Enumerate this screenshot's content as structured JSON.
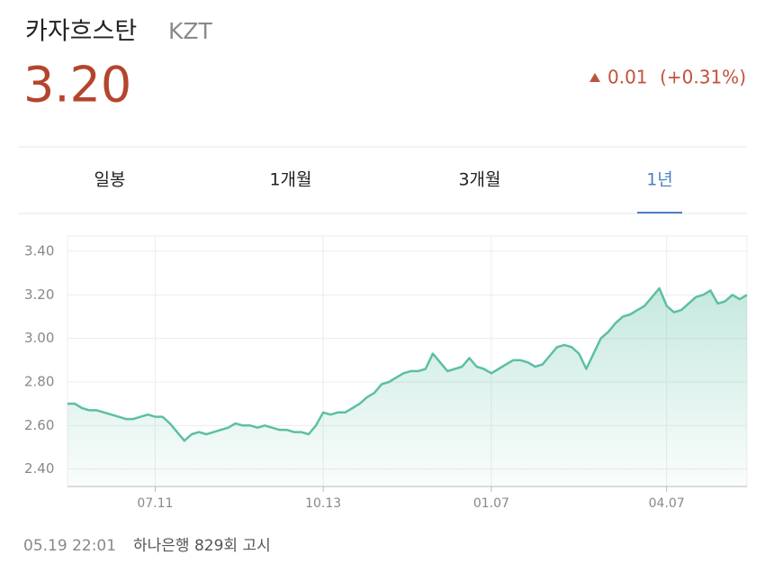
{
  "header": {
    "country": "카자흐스탄",
    "code": "KZT",
    "price": "3.20",
    "change": "0.01",
    "change_percent": "(+0.31%)"
  },
  "tabs": [
    {
      "label": "일봉"
    },
    {
      "label": "1개월"
    },
    {
      "label": "3개월"
    },
    {
      "label": "1년",
      "selected": true
    }
  ],
  "chart_data": {
    "type": "area",
    "color": "#5cbfa4",
    "grid": true,
    "categories": [
      null,
      null,
      null,
      null,
      null,
      null,
      null,
      null,
      null,
      null,
      null,
      null,
      "07.11",
      null,
      null,
      null,
      null,
      null,
      null,
      null,
      null,
      null,
      null,
      null,
      null,
      null,
      null,
      null,
      null,
      null,
      null,
      null,
      null,
      null,
      null,
      "10.13",
      null,
      null,
      null,
      null,
      null,
      null,
      null,
      null,
      null,
      null,
      null,
      null,
      null,
      null,
      null,
      null,
      null,
      null,
      null,
      null,
      null,
      null,
      "01.07",
      null,
      null,
      null,
      null,
      null,
      null,
      null,
      null,
      null,
      null,
      null,
      null,
      null,
      null,
      null,
      null,
      null,
      null,
      null,
      null,
      null,
      null,
      null,
      "04.07",
      null,
      null,
      null,
      null,
      null,
      null,
      null,
      null,
      null,
      null,
      null
    ],
    "values": [
      2.7,
      2.7,
      2.68,
      2.67,
      2.67,
      2.66,
      2.65,
      2.64,
      2.63,
      2.63,
      2.64,
      2.65,
      2.64,
      2.64,
      2.61,
      2.57,
      2.53,
      2.56,
      2.57,
      2.56,
      2.57,
      2.58,
      2.59,
      2.61,
      2.6,
      2.6,
      2.59,
      2.6,
      2.59,
      2.58,
      2.58,
      2.57,
      2.57,
      2.56,
      2.6,
      2.66,
      2.65,
      2.66,
      2.66,
      2.68,
      2.7,
      2.73,
      2.75,
      2.79,
      2.8,
      2.82,
      2.84,
      2.85,
      2.85,
      2.86,
      2.93,
      2.89,
      2.85,
      2.86,
      2.87,
      2.91,
      2.87,
      2.86,
      2.84,
      2.86,
      2.88,
      2.9,
      2.9,
      2.89,
      2.87,
      2.88,
      2.92,
      2.96,
      2.97,
      2.96,
      2.93,
      2.86,
      2.93,
      3.0,
      3.03,
      3.07,
      3.1,
      3.11,
      3.13,
      3.15,
      3.19,
      3.23,
      3.15,
      3.12,
      3.13,
      3.16,
      3.19,
      3.2,
      3.22,
      3.16,
      3.17,
      3.2,
      3.18,
      3.2
    ],
    "ylim": [
      2.32,
      3.47
    ],
    "yticks": [
      {
        "value": 2.4,
        "label": "2.40"
      },
      {
        "value": 2.6,
        "label": "2.60"
      },
      {
        "value": 2.8,
        "label": "2.80"
      },
      {
        "value": 3.0,
        "label": "3.00"
      },
      {
        "value": 3.2,
        "label": "3.20"
      },
      {
        "value": 3.4,
        "label": "3.40"
      }
    ]
  },
  "footer": {
    "time": "05.19 22:01",
    "source": "하나은행 829회 고시"
  }
}
